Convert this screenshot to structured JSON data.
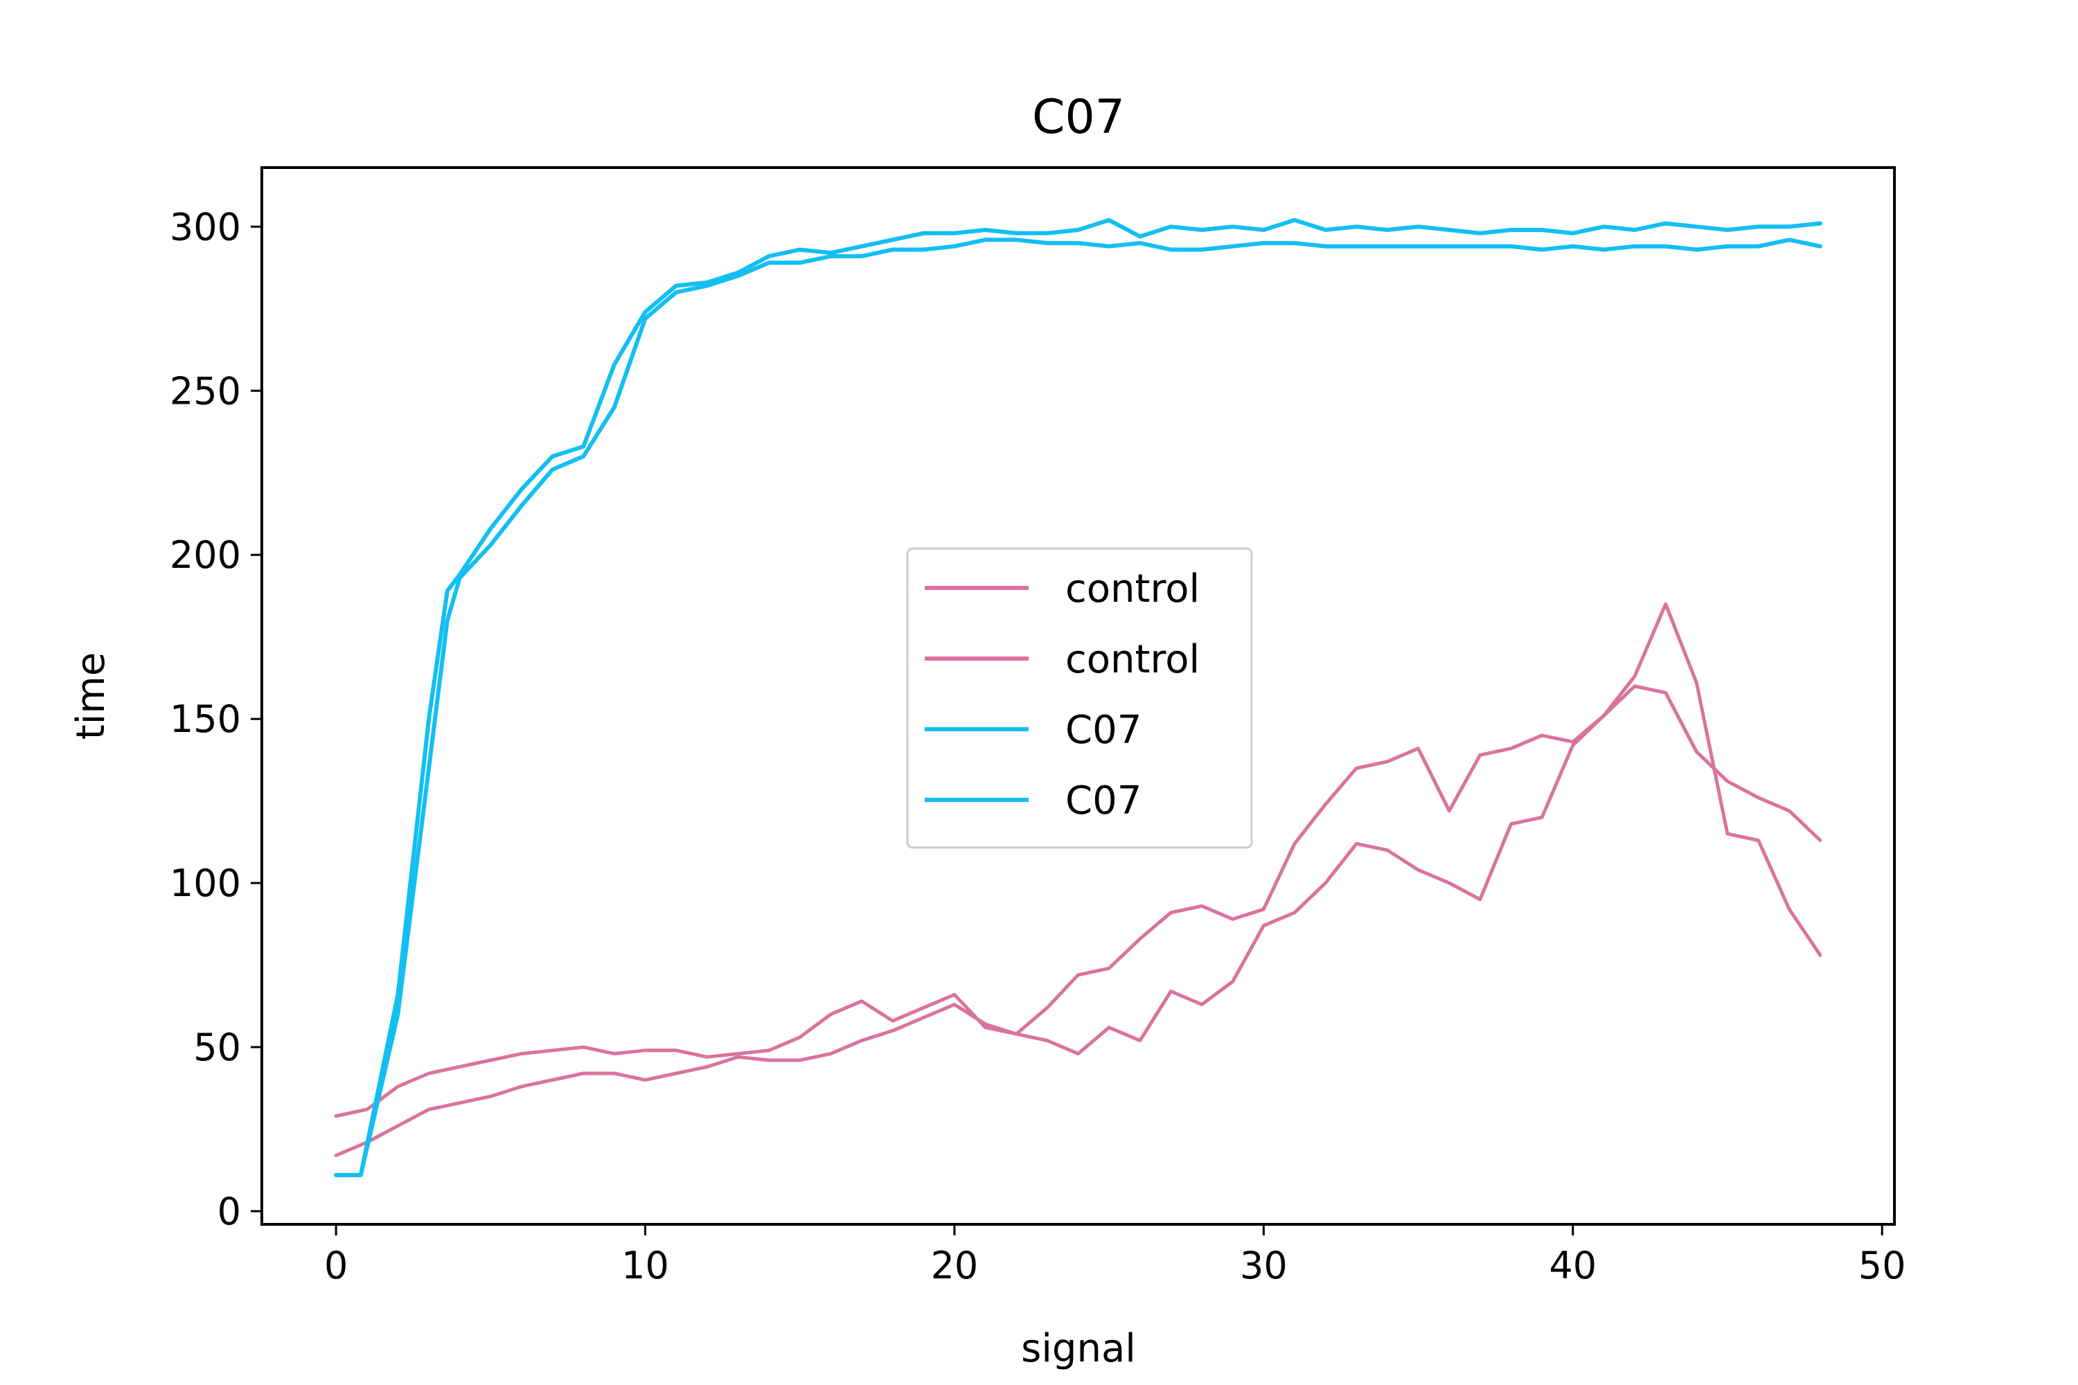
{
  "chart_data": {
    "type": "line",
    "title": "C07",
    "xlabel": "signal",
    "ylabel": "time",
    "xlim": [
      -2.4,
      50.4
    ],
    "ylim": [
      -4,
      318
    ],
    "xticks": [
      0,
      10,
      20,
      30,
      40,
      50
    ],
    "yticks": [
      0,
      50,
      100,
      150,
      200,
      250,
      300
    ],
    "grid": false,
    "legend_position": "center",
    "colors": {
      "control": "#d9739c",
      "C07": "#13bef2"
    },
    "series": [
      {
        "name": "control",
        "color": "#d9739c",
        "x": [
          0,
          1,
          2,
          3,
          4,
          5,
          6,
          7,
          8,
          9,
          10,
          11,
          12,
          13,
          14,
          15,
          16,
          17,
          18,
          19,
          20,
          21,
          22,
          23,
          24,
          25,
          26,
          27,
          28,
          29,
          30,
          31,
          32,
          33,
          34,
          35,
          36,
          37,
          38,
          39,
          40,
          41,
          42,
          43,
          44,
          45,
          46,
          47,
          48
        ],
        "y": [
          29,
          31,
          38,
          42,
          44,
          46,
          48,
          49,
          50,
          48,
          49,
          49,
          47,
          48,
          49,
          53,
          60,
          64,
          58,
          62,
          66,
          56,
          54,
          62,
          72,
          74,
          83,
          91,
          93,
          89,
          92,
          112,
          124,
          135,
          137,
          141,
          122,
          139,
          141,
          145,
          143,
          151,
          160,
          158,
          140,
          131,
          126,
          122,
          113
        ]
      },
      {
        "name": "control",
        "color": "#d9739c",
        "x": [
          0,
          1,
          2,
          3,
          4,
          5,
          6,
          7,
          8,
          9,
          10,
          11,
          12,
          13,
          14,
          15,
          16,
          17,
          18,
          19,
          20,
          21,
          22,
          23,
          24,
          25,
          26,
          27,
          28,
          29,
          30,
          31,
          32,
          33,
          34,
          35,
          36,
          37,
          38,
          39,
          40,
          41,
          42,
          43,
          44,
          45,
          46,
          47,
          48
        ],
        "y": [
          17,
          21,
          26,
          31,
          33,
          35,
          38,
          40,
          42,
          42,
          40,
          42,
          44,
          47,
          46,
          46,
          48,
          52,
          55,
          59,
          63,
          57,
          54,
          52,
          48,
          56,
          52,
          67,
          63,
          70,
          87,
          91,
          100,
          112,
          110,
          104,
          100,
          95,
          118,
          120,
          142,
          151,
          163,
          185,
          161,
          115,
          113,
          92,
          78
        ]
      },
      {
        "name": "C07",
        "color": "#13bef2",
        "x": [
          0,
          0.8,
          2,
          3,
          3.6,
          4,
          5,
          6,
          7,
          8,
          9,
          10,
          11,
          12,
          13,
          14,
          15,
          16,
          17,
          18,
          19,
          20,
          21,
          22,
          23,
          24,
          25,
          26,
          27,
          28,
          29,
          30,
          31,
          32,
          33,
          34,
          35,
          36,
          37,
          38,
          39,
          40,
          41,
          42,
          43,
          44,
          45,
          46,
          47,
          48
        ],
        "y": [
          11,
          11,
          66,
          150,
          189,
          194,
          208,
          220,
          230,
          233,
          258,
          274,
          282,
          283,
          286,
          291,
          293,
          292,
          294,
          296,
          298,
          298,
          299,
          298,
          298,
          299,
          302,
          297,
          300,
          299,
          300,
          299,
          302,
          299,
          300,
          299,
          300,
          299,
          298,
          299,
          299,
          298,
          300,
          299,
          301,
          300,
          299,
          300,
          300,
          301
        ]
      },
      {
        "name": "C07",
        "color": "#13bef2",
        "x": [
          0,
          0.8,
          2,
          3,
          3.6,
          4,
          5,
          6,
          7,
          8,
          9,
          10,
          11,
          12,
          13,
          14,
          15,
          16,
          17,
          18,
          19,
          20,
          21,
          22,
          23,
          24,
          25,
          26,
          27,
          28,
          29,
          30,
          31,
          32,
          33,
          34,
          35,
          36,
          37,
          38,
          39,
          40,
          41,
          42,
          43,
          44,
          45,
          46,
          47,
          48
        ],
        "y": [
          11,
          11,
          60,
          135,
          180,
          193,
          203,
          215,
          226,
          230,
          245,
          272,
          280,
          282,
          285,
          289,
          289,
          291,
          291,
          293,
          293,
          294,
          296,
          296,
          295,
          295,
          294,
          295,
          293,
          293,
          294,
          295,
          295,
          294,
          294,
          294,
          294,
          294,
          294,
          294,
          293,
          294,
          293,
          294,
          294,
          293,
          294,
          294,
          296,
          294
        ]
      }
    ]
  }
}
